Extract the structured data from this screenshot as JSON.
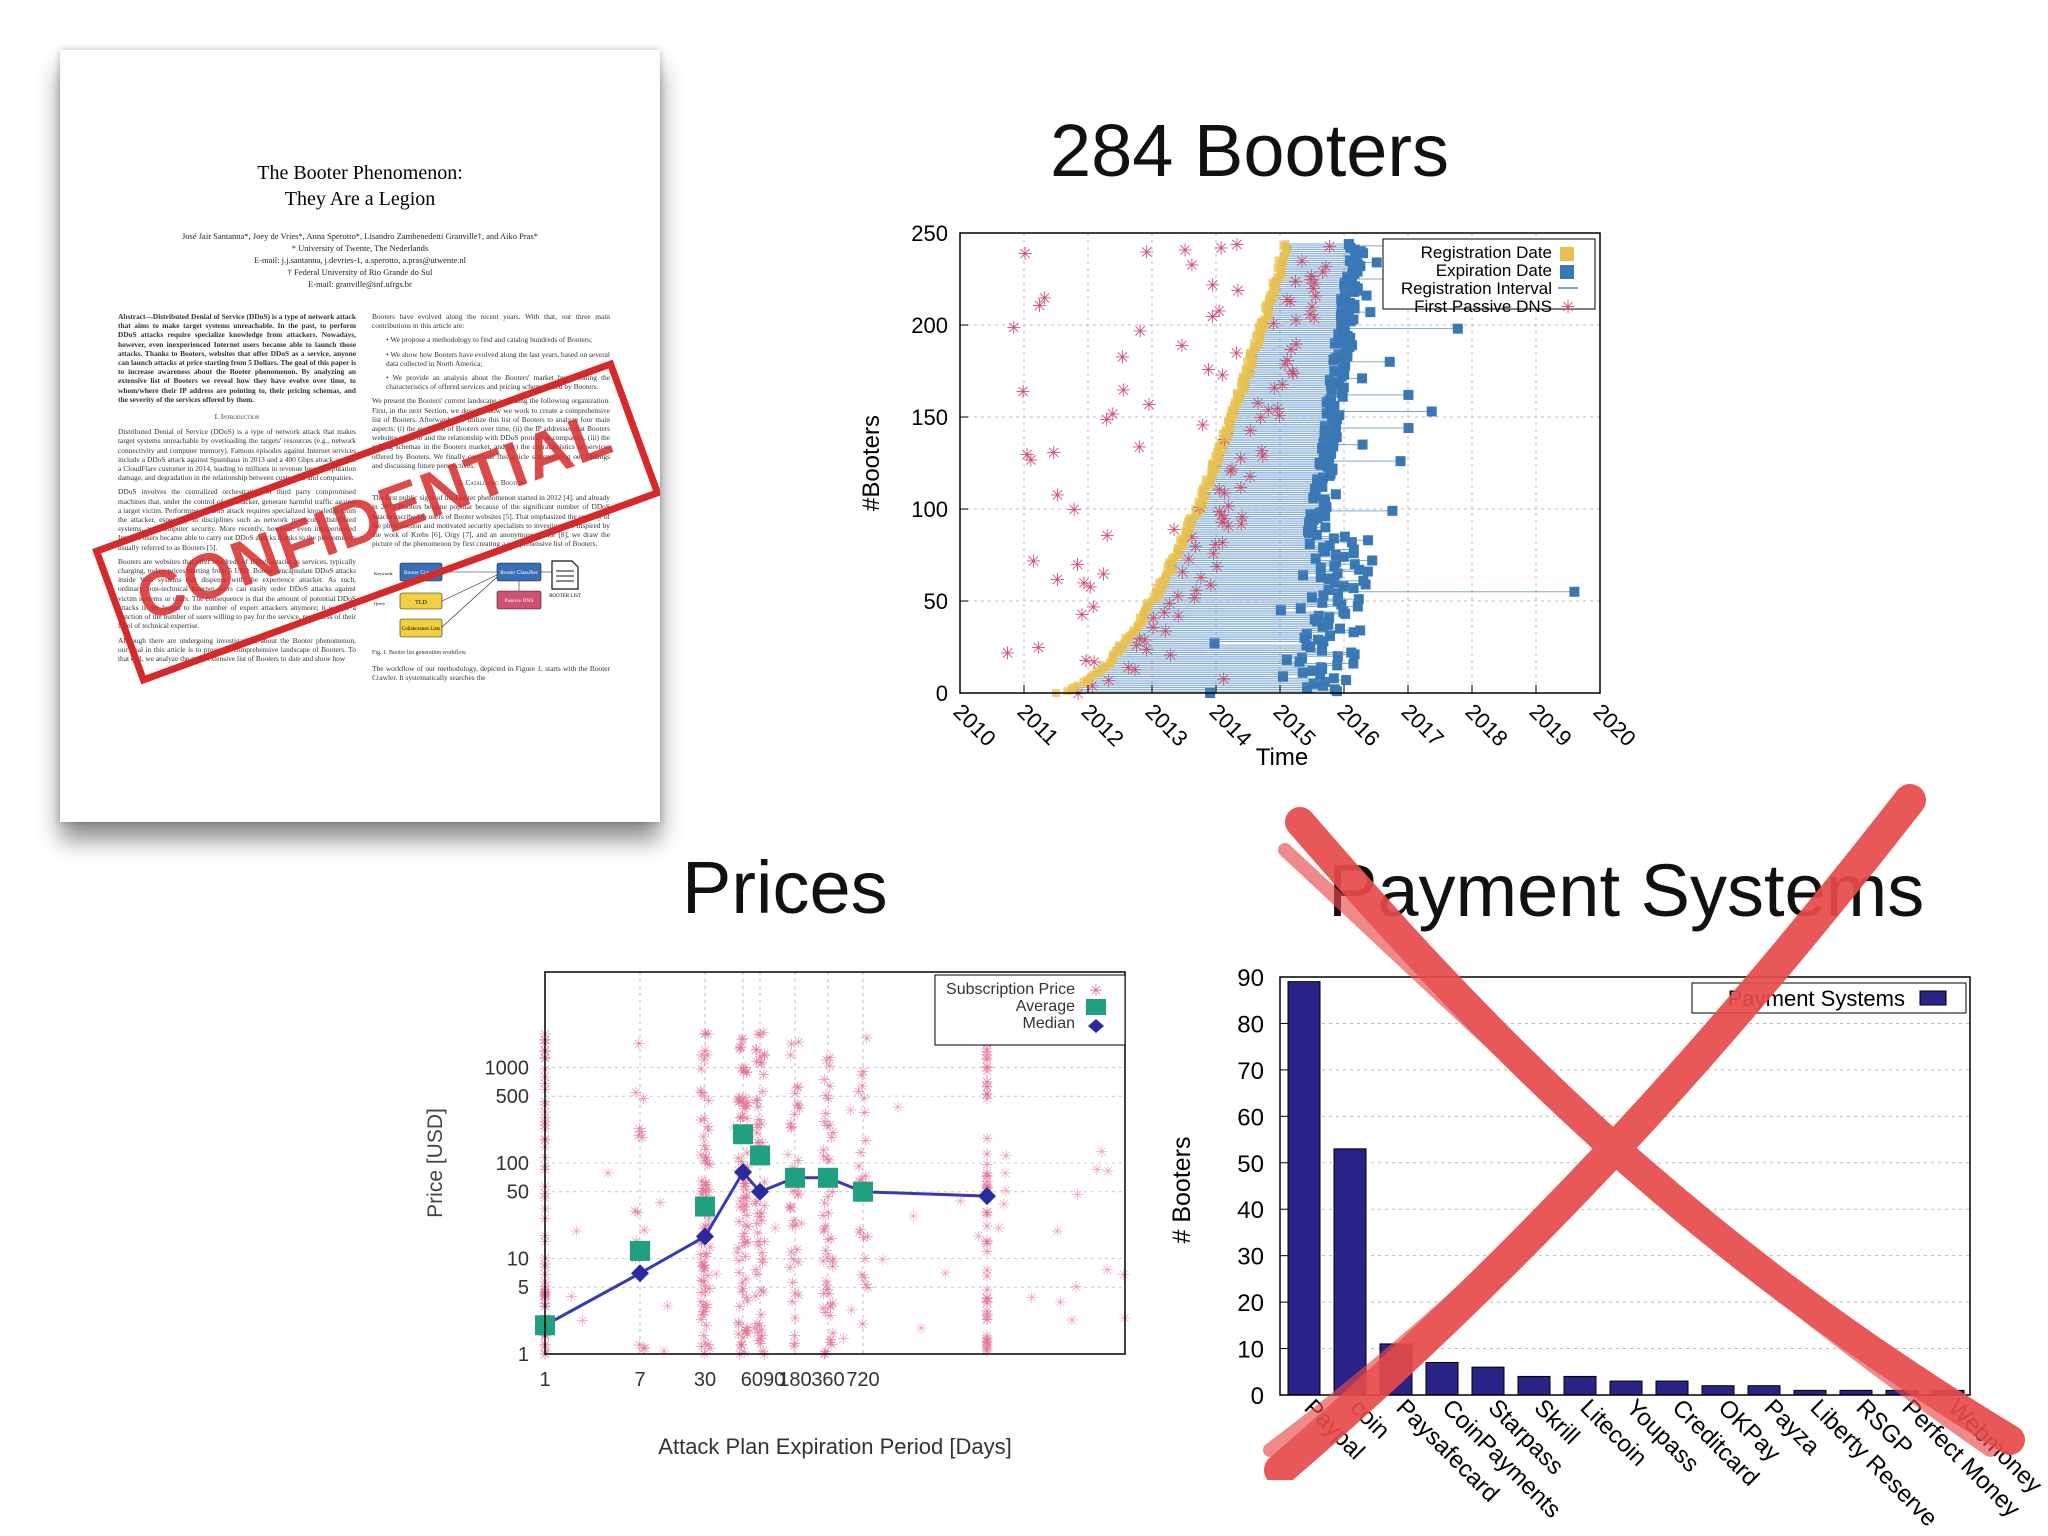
{
  "titles": {
    "booters": "284 Booters",
    "prices": "Prices",
    "payment": "Payment Systems"
  },
  "paper": {
    "title_line1": "The Booter Phenomenon:",
    "title_line2": "They Are a Legion",
    "authors": "José Jair Santanna*, Joey de Vries*, Anna Sperotto*, Lisandro Zambenedetti Granville†, and Aiko Pras*",
    "affil1": "* University of Twente, The Nederlands",
    "email1": "E-mail: j.j.santanna, j.devries-1, a.sperotto, a.pras@utwente.nl",
    "affil2": "† Federal University of Rio Grande do Sul",
    "email2": "E-mail: granville@inf.ufrgs.br",
    "abstract": "Abstract—Distributed Denial of Service (DDoS) is a type of network attack that aims to make target systems unreachable. In the past, to perform DDoS attacks require specialize knowledge from attackers. Nowadays, however, even inexperienced Internet users became able to launch those attacks. Thanks to Booters, websites that offer DDoS as a service, anyone can launch attacks at price starting from 5 Dollars. The goal of this paper is to increase awareness about the Booter phenomenon. By analyzing an extensive list of Booters we reveal how they have evolve over time, to whom/where their IP address are pointing to, their pricing schemas, and the severity of the services offered by them.",
    "sec1": "I. Introduction",
    "intro": "Distributed Denial of Service (DDoS) is a type of network attack that makes target systems unreachable by overloading the targets' resources (e.g., network connectivity and computer memory). Famous episodes against Internet services include a DDoS attack against Spamhaus in 2013 and a 400 Gbps attack against a CloudFlare customer in 2014, leading to millions in revenue losses, reputation damage, and degradation in the relationship between customers and companies.",
    "intro2": "DDoS involves the centralized orchestration of third party compromised machines that, under the control of an attacker, generate harmful traffic against a target victim. Performing a DDoS attack requires specialized knowledge from the attacker, especially in disciplines such as network protocols, distributed systems, and computer security. More recently, however, even inexperienced Internet users became able to carry out DDoS attacks thanks to the phenomenon usually referred to as Booters [5].",
    "intro3": "Booters are websites that offer hundreds of DDoS attacks as services, typically charging, today, prices starting from 5 USD. Booters encapsulate DDoS attacks inside Web systems that dispense with the experience attacker. As such, ordinary, non-technical Internet users can easily order DDoS attacks against victim systems or users. The consequence is that the amount of potential DDoS attacks is not bound to the number of expert attackers anymore; it is now a function of the number of users willing to pay for the service, regardless of their level of technical expertise.",
    "intro4": "Although there are undergoing investigations about the Booter phenomenon, our goal in this article is to present a comprehensive landscape of Booters. To that end, we analyze the most extensive list of Booters to date and show how",
    "col2a": "Booters have evolved along the recent years. With that, our three main contributions in this article are:",
    "bullet1": "We propose a methodology to find and catalog hundreds of Booters;",
    "bullet2": "We show how Booters have evolved along the last years, based on several data collected in North America;",
    "bullet3": "We provide an analysis about the Booters' market by revealing the characteristics of offered services and pricing schemas used by Booters.",
    "col2b": "We present the Booters' current landscape according the following organization. First, in the next Section, we describe how we work to create a comprehensive list of Booters. Afterwards, we utilize this list of Booters to analyze four main aspects: (i) the evolution of Booters over time, (ii) the IP addresses that Booters websites point to and the relationship with DDoS protection companies, (iii) the pricing schemas in the Booters market, and (iv) the characteristics of services offered by Booters. We finally conclude this article summarizing our findings and discussing future perspectives.",
    "sec2": "II. Cataloging Booters",
    "col2c": "The first public signs of the Booter phenomenon started in 2012 [4], and already in 2013 Booters became popular because of the significant number of DDoS attacks ascribed to users of Booter websites [5]. That emphasized the severity of the phenomenon and motivated security specialists to investigate it. Inspired by the work of Krebs [6], Orgy [7], and an anonymous author [8], we draw the picture of the phenomenon by first creating a comprehensive list of Booters.",
    "fig_caption": "Fig. 1.   Booter list generation workflow.",
    "col2d": "The workflow of our methodology, depicted in Figure 1, starts with the Booter Crawler. It systematically searches the",
    "fig": {
      "crawler": "Booter Crawler",
      "classifier": "Booter Classifier",
      "tld": "TLD",
      "collab": "Collaborators Lists",
      "dns": "Passive DNS",
      "list": "BOOTER LIST",
      "keywords": "Keywords",
      "query": "Query"
    },
    "stamp": "CONFIDENTIAL"
  },
  "chart_data": [
    {
      "type": "scatter",
      "xlabel": "Time",
      "ylabel": "#Booters",
      "xticks": [
        "2010",
        "2011",
        "2012",
        "2013",
        "2014",
        "2015",
        "2016",
        "2017",
        "2018",
        "2019",
        "2020"
      ],
      "yticks": [
        "0",
        "50",
        "100",
        "150",
        "200",
        "250"
      ],
      "xlim": [
        2010,
        2020
      ],
      "ylim": [
        0,
        250
      ],
      "legend": [
        "Registration Date",
        "Expiration Date",
        "Registration Interval",
        "First Passive DNS"
      ],
      "legend_position": "top-right",
      "colors": {
        "registration": "#e8c050",
        "expiration": "#3a78b5",
        "interval": "#4a86c0",
        "dns": "#d0506e"
      }
    },
    {
      "type": "scatter",
      "xlabel": "Attack Plan Expiration Period [Days]",
      "ylabel": "Price [USD]",
      "yscale": "log",
      "xticks": [
        "1",
        "7",
        "30",
        "6090",
        "180",
        "360",
        "720"
      ],
      "yticks": [
        "1",
        "5",
        "10",
        "50",
        "100",
        "500",
        "1000"
      ],
      "legend": [
        "Subscription Price",
        "Average",
        "Median"
      ],
      "legend_position": "top-right",
      "average": [
        [
          1,
          2
        ],
        [
          7,
          12
        ],
        [
          30,
          35
        ],
        [
          60,
          200
        ],
        [
          90,
          120
        ],
        [
          180,
          70
        ],
        [
          360,
          70
        ],
        [
          720,
          50
        ]
      ],
      "median": [
        [
          1,
          2
        ],
        [
          7,
          7
        ],
        [
          30,
          17
        ],
        [
          60,
          80
        ],
        [
          90,
          50
        ],
        [
          180,
          70
        ],
        [
          360,
          70
        ],
        [
          720,
          50
        ],
        [
          1000,
          45
        ]
      ],
      "colors": {
        "price": "#e07090",
        "average": "#20a080",
        "median": "#2a2aa0"
      }
    },
    {
      "type": "bar",
      "xlabel": "",
      "ylabel": "# Booters",
      "yticks": [
        "0",
        "10",
        "20",
        "30",
        "40",
        "50",
        "60",
        "70",
        "80",
        "90"
      ],
      "ylim": [
        0,
        90
      ],
      "legend": [
        "Payment Systems"
      ],
      "legend_position": "top-right",
      "categories": [
        "PayPal",
        "Bitcoin",
        "Paysafecard",
        "CoinPayments",
        "Starpass",
        "Skrill",
        "Litecoin",
        "Youpass",
        "Creditcard",
        "OKPay",
        "Payza",
        "Liberty Reserve",
        "RSGP",
        "Perfect Money",
        "Webmoney"
      ],
      "category_labels": [
        "Paypal",
        "coin",
        "Paysafecard",
        "CoinPayments",
        "Starpass",
        "Skrill",
        "Litecoin",
        "Youpass",
        "Creditcard",
        "OKPay",
        "Payza",
        "Liberty Reserve",
        "RSGP",
        "Perfect Money",
        "Webmoney"
      ],
      "values": [
        89,
        53,
        11,
        7,
        6,
        4,
        4,
        3,
        3,
        2,
        2,
        1,
        1,
        1,
        1
      ],
      "colors": {
        "bar": "#2a2488",
        "cross": "#e84a4a"
      }
    }
  ]
}
